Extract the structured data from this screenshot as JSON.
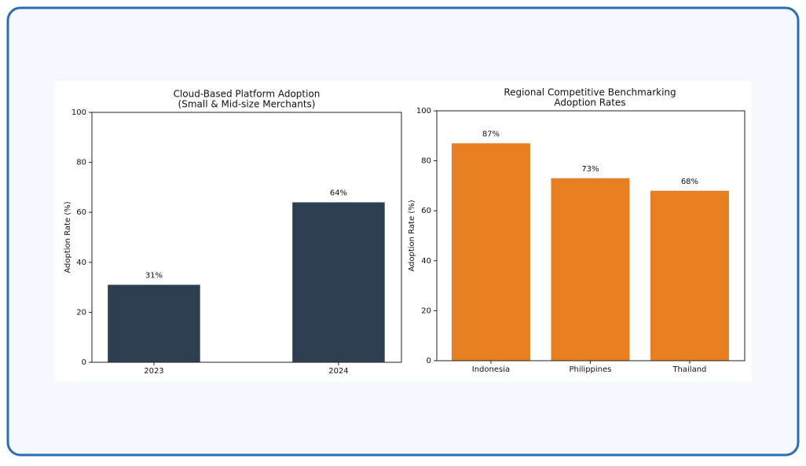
{
  "chart_data": [
    {
      "type": "bar",
      "title": "Cloud-Based Platform Adoption",
      "subtitle": "(Small & Mid-size Merchants)",
      "y_label": "Adoption Rate (%)",
      "categories": [
        "2023",
        "2024"
      ],
      "values": [
        31,
        64
      ],
      "value_labels": [
        "31%",
        "64%"
      ],
      "color": "#2d3e50",
      "ylim": [
        0,
        100
      ],
      "yticks": [
        0,
        20,
        40,
        60,
        80,
        100
      ]
    },
    {
      "type": "bar",
      "title": "Regional Competitive Benchmarking",
      "subtitle": "Adoption Rates",
      "y_label": "Adoption Rate (%)",
      "categories": [
        "Indonesia",
        "Philippines",
        "Thailand"
      ],
      "values": [
        87,
        73,
        68
      ],
      "value_labels": [
        "87%",
        "73%",
        "68%"
      ],
      "color": "#e67e22",
      "ylim": [
        0,
        100
      ],
      "yticks": [
        0,
        20,
        40,
        60,
        80,
        100
      ]
    }
  ]
}
